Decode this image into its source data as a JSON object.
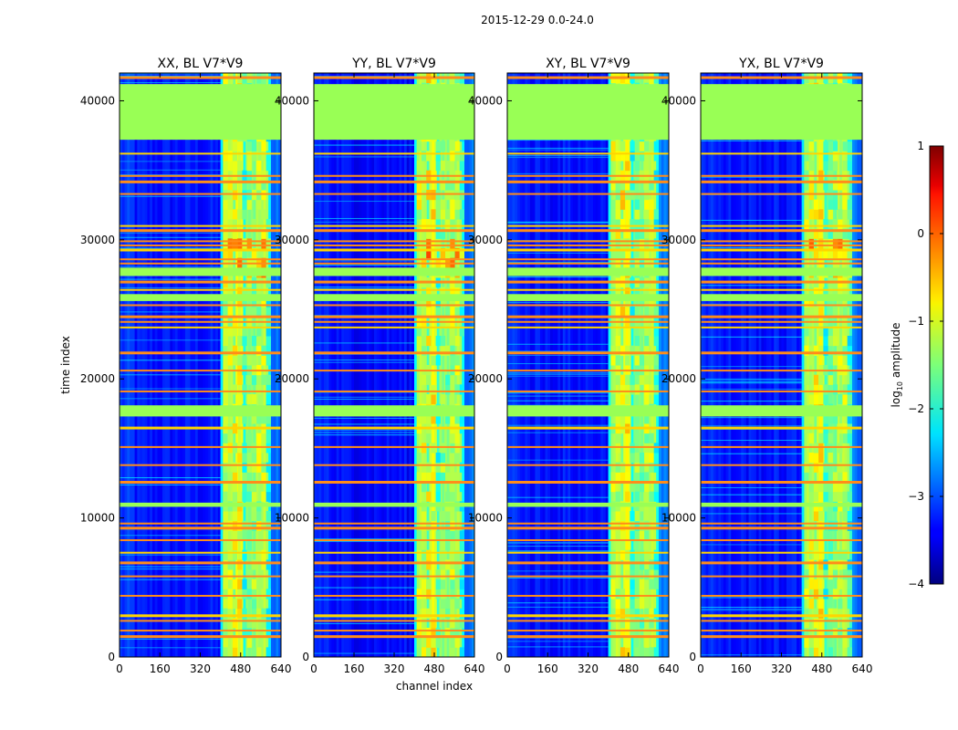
{
  "chart_data": {
    "type": "heatmap",
    "suptitle": "2015-12-29 0.0-24.0",
    "xlabel": "channel index",
    "ylabel": "time index",
    "xlim": [
      0,
      640
    ],
    "ylim": [
      0,
      42000
    ],
    "x_ticks": [
      0,
      160,
      320,
      480,
      640
    ],
    "y_ticks": [
      0,
      10000,
      20000,
      30000,
      40000
    ],
    "panels": [
      {
        "title": "XX, BL V7*V9",
        "pol": "XX"
      },
      {
        "title": "YY, BL V7*V9",
        "pol": "YY"
      },
      {
        "title": "XY, BL V7*V9",
        "pol": "XY"
      },
      {
        "title": "YX, BL V7*V9",
        "pol": "YX"
      }
    ],
    "flagged_time_bands": [
      {
        "start": 37200,
        "end": 41200,
        "level": -0.9
      },
      {
        "start": 27400,
        "end": 28000,
        "level": -0.9
      },
      {
        "start": 25600,
        "end": 26100,
        "level": -0.9
      },
      {
        "start": 17300,
        "end": 18100,
        "level": -0.9
      },
      {
        "start": 10800,
        "end": 11100,
        "level": -0.9
      }
    ],
    "rfi_time_lines": [
      41700,
      36200,
      34600,
      34200,
      33300,
      31000,
      30700,
      29900,
      29600,
      29300,
      28600,
      28300,
      27000,
      26400,
      25300,
      24500,
      24100,
      23700,
      21900,
      20600,
      19100,
      16500,
      15100,
      13800,
      12600,
      10900,
      9600,
      9300,
      8400,
      7500,
      6800,
      5800,
      4400,
      3000,
      2600,
      1900,
      1500
    ],
    "bright_channel_range": [
      410,
      600
    ],
    "colorbar": {
      "label": "log10 amplitude",
      "ticks": [
        1,
        0,
        -1,
        -2,
        -3,
        -4
      ],
      "range": [
        -4,
        1
      ],
      "colormap": "jet"
    },
    "colors": {
      "flag": "#99ff55",
      "rfi_line": "#ff8c1a",
      "background": "#ffffff"
    }
  }
}
